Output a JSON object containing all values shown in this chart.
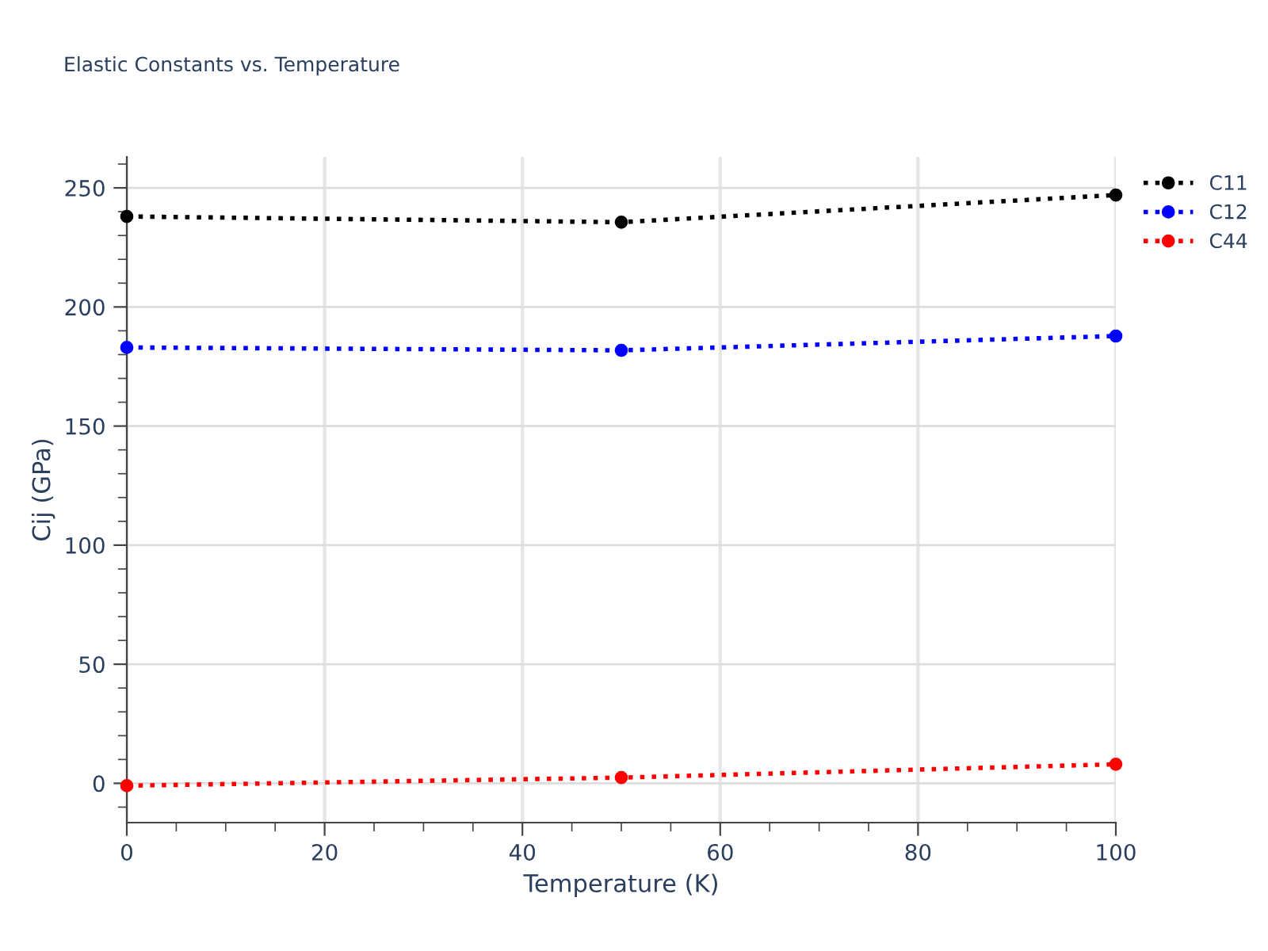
{
  "chart_data": {
    "type": "line",
    "title": "Elastic Constants vs. Temperature",
    "xlabel": "Temperature (K)",
    "ylabel": "Cij (GPa)",
    "x": [
      0,
      50,
      100
    ],
    "series": [
      {
        "name": "C11",
        "color": "#000000",
        "values": [
          238,
          235.6,
          247
        ]
      },
      {
        "name": "C12",
        "color": "#0000ff",
        "values": [
          183,
          181.8,
          187.8
        ]
      },
      {
        "name": "C44",
        "color": "#ff0000",
        "values": [
          -1,
          2.4,
          8
        ]
      }
    ],
    "xlim": [
      0,
      100
    ],
    "ylim": [
      -16.5,
      263
    ],
    "xticks": [
      0,
      {
        "value": 5,
        "label": null
      },
      {
        "value": 10,
        "label": null
      },
      {
        "value": 15,
        "label": null
      },
      20,
      {
        "value": 25,
        "label": null
      },
      {
        "value": 30,
        "label": null
      },
      {
        "value": 35,
        "label": null
      },
      40,
      {
        "value": 45,
        "label": null
      },
      {
        "value": 50,
        "label": null
      },
      {
        "value": 55,
        "label": null
      },
      60,
      {
        "value": 65,
        "label": null
      },
      {
        "value": 70,
        "label": null
      },
      {
        "value": 75,
        "label": null
      },
      80,
      {
        "value": 85,
        "label": null
      },
      {
        "value": 90,
        "label": null
      },
      {
        "value": 95,
        "label": null
      },
      100
    ],
    "yticks": [
      {
        "value": -10,
        "label": null
      },
      0,
      {
        "value": 10,
        "label": null
      },
      {
        "value": 20,
        "label": null
      },
      {
        "value": 30,
        "label": null
      },
      {
        "value": 40,
        "label": null
      },
      50,
      {
        "value": 60,
        "label": null
      },
      {
        "value": 70,
        "label": null
      },
      {
        "value": 80,
        "label": null
      },
      {
        "value": 90,
        "label": null
      },
      100,
      {
        "value": 110,
        "label": null
      },
      {
        "value": 120,
        "label": null
      },
      {
        "value": 130,
        "label": null
      },
      {
        "value": 140,
        "label": null
      },
      150,
      {
        "value": 160,
        "label": null
      },
      {
        "value": 170,
        "label": null
      },
      {
        "value": 180,
        "label": null
      },
      {
        "value": 190,
        "label": null
      },
      200,
      {
        "value": 210,
        "label": null
      },
      {
        "value": 220,
        "label": null
      },
      {
        "value": 230,
        "label": null
      },
      {
        "value": 240,
        "label": null
      },
      250,
      {
        "value": 260,
        "label": null
      }
    ],
    "grid": true,
    "legend": "top right",
    "marker": "circle",
    "line_style": "dotted"
  }
}
